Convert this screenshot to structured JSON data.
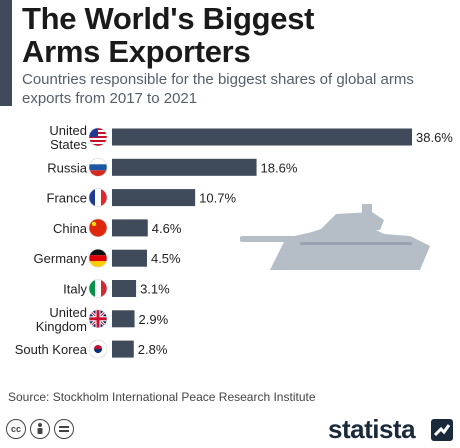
{
  "header": {
    "title_line1": "The World's Biggest",
    "title_line2": "Arms Exporters",
    "subtitle": "Countries responsible for the biggest shares of global arms exports from 2017 to 2021"
  },
  "chart_data": {
    "type": "bar",
    "orientation": "horizontal",
    "categories": [
      "United States",
      "Russia",
      "France",
      "China",
      "Germany",
      "Italy",
      "United Kingdom",
      "South Korea"
    ],
    "category_lines": [
      [
        "United",
        "States"
      ],
      [
        "Russia"
      ],
      [
        "France"
      ],
      [
        "China"
      ],
      [
        "Germany"
      ],
      [
        "Italy"
      ],
      [
        "United",
        "Kingdom"
      ],
      [
        "South Korea"
      ]
    ],
    "values": [
      38.6,
      18.6,
      10.7,
      4.6,
      4.5,
      3.1,
      2.9,
      2.8
    ],
    "value_labels": [
      "38.6%",
      "18.6%",
      "10.7%",
      "4.6%",
      "4.5%",
      "3.1%",
      "2.9%",
      "2.8%"
    ],
    "unit": "%",
    "xlim": [
      0,
      38.6
    ],
    "bar_color": "#3f4a5a",
    "flags": [
      "flag-us-icon",
      "flag-russia-icon",
      "flag-france-icon",
      "flag-china-icon",
      "flag-germany-icon",
      "flag-italy-icon",
      "flag-uk-icon",
      "flag-south-korea-icon"
    ],
    "grid": false,
    "legend": "none"
  },
  "illustration": {
    "icon": "tank-icon",
    "color": "#b5bdc7"
  },
  "footer": {
    "source": "Source: Stockholm International Peace Research Institute",
    "brand": "statista",
    "license_icons": [
      "cc-icon",
      "attribution-icon",
      "no-derivatives-icon"
    ]
  }
}
